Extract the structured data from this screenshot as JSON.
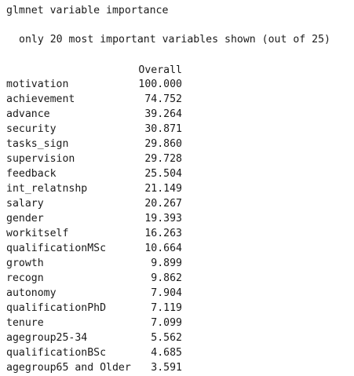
{
  "console": {
    "title": "glmnet variable importance",
    "subtitle": "only 20 most important variables shown (out of 25)",
    "column_header": "Overall",
    "rows": [
      {
        "name": "motivation",
        "value": "100.000"
      },
      {
        "name": "achievement",
        "value": "74.752"
      },
      {
        "name": "advance",
        "value": "39.264"
      },
      {
        "name": "security",
        "value": "30.871"
      },
      {
        "name": "tasks_sign",
        "value": "29.860"
      },
      {
        "name": "supervision",
        "value": "29.728"
      },
      {
        "name": "feedback",
        "value": "25.504"
      },
      {
        "name": "int_relatnshp",
        "value": "21.149"
      },
      {
        "name": "salary",
        "value": "20.267"
      },
      {
        "name": "gender",
        "value": "19.393"
      },
      {
        "name": "workitself",
        "value": "16.263"
      },
      {
        "name": "qualificationMSc",
        "value": "10.664"
      },
      {
        "name": "growth",
        "value": "9.899"
      },
      {
        "name": "recogn",
        "value": "9.862"
      },
      {
        "name": "autonomy",
        "value": "7.904"
      },
      {
        "name": "qualificationPhD",
        "value": "7.119"
      },
      {
        "name": "tenure",
        "value": "7.099"
      },
      {
        "name": "agegroup25-34",
        "value": "5.562"
      },
      {
        "name": "qualificationBSc",
        "value": "4.685"
      },
      {
        "name": "agegroup65 and Older",
        "value": "3.591"
      }
    ]
  }
}
